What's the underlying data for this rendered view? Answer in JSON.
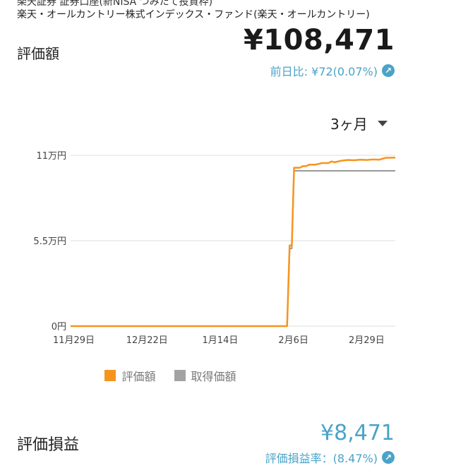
{
  "header": {
    "account": "楽天証券 証券口座(新NISA つみたて投資枠)",
    "fund_name": "楽天・オールカントリー株式インデックス・ファンド(楽天・オールカントリー)"
  },
  "valuation": {
    "label": "評価額",
    "amount": "¥108,471",
    "day_change": "前日比: ¥72(0.07%)"
  },
  "period_select": {
    "value": "3ヶ月"
  },
  "chart_data": {
    "type": "line",
    "y_tick_labels": [
      "11万円",
      "5.5万円",
      "0円"
    ],
    "y_ticks": [
      110000,
      55000,
      0
    ],
    "ylim": [
      0,
      110000
    ],
    "x_tick_labels": [
      "11月29日",
      "12月22日",
      "1月14日",
      "2月6日",
      "2月29日"
    ],
    "x_tick_positions": [
      0,
      23,
      46,
      69,
      92
    ],
    "xlim": [
      -1,
      101
    ],
    "series": [
      {
        "name": "評価額",
        "color": "#f7941d",
        "points": [
          [
            -1,
            0
          ],
          [
            67,
            0
          ],
          [
            67.8,
            52000
          ],
          [
            68.5,
            52000
          ],
          [
            69.2,
            102000
          ],
          [
            71,
            102000
          ],
          [
            72,
            103000
          ],
          [
            73,
            103000
          ],
          [
            74,
            104000
          ],
          [
            76,
            104000
          ],
          [
            78,
            105000
          ],
          [
            80,
            105000
          ],
          [
            81,
            106000
          ],
          [
            82,
            105500
          ],
          [
            84,
            106500
          ],
          [
            86,
            107000
          ],
          [
            88,
            106800
          ],
          [
            90,
            107200
          ],
          [
            92,
            107000
          ],
          [
            94,
            107300
          ],
          [
            96,
            107200
          ],
          [
            98,
            108400
          ],
          [
            101,
            108471
          ]
        ]
      },
      {
        "name": "取得価額",
        "color": "#999999",
        "points": [
          [
            -1,
            0
          ],
          [
            67,
            0
          ],
          [
            67.8,
            50000
          ],
          [
            68.5,
            50000
          ],
          [
            69.2,
            100000
          ],
          [
            101,
            100000
          ]
        ]
      }
    ]
  },
  "legend": {
    "items": [
      "評価額",
      "取得価額"
    ]
  },
  "profit_loss": {
    "label": "評価損益",
    "amount": "¥8,471",
    "rate": "評価損益率：(8.47%)"
  }
}
